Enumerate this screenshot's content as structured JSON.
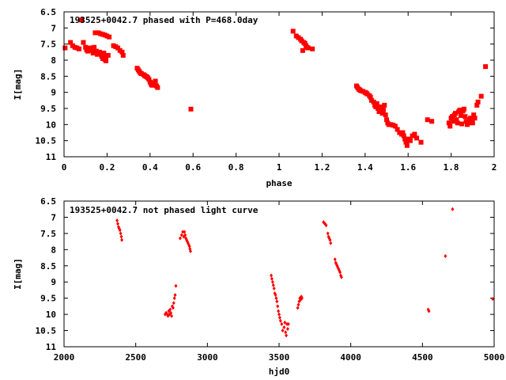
{
  "colors": {
    "points": "#ff0000",
    "axes": "#000000",
    "background": "#ffffff"
  },
  "chart_data": [
    {
      "type": "scatter",
      "title": "193525+0042.7 phased with P=468.0day",
      "xlabel": "phase",
      "ylabel": "I[mag]",
      "xlim": [
        0,
        2
      ],
      "ylim": [
        6.5,
        11
      ],
      "y_reversed": true,
      "grid": false,
      "marker": "filled-square",
      "xticks": [
        "0",
        "0.2",
        "0.4",
        "0.6",
        "0.8",
        "1",
        "1.2",
        "1.4",
        "1.6",
        "1.8",
        "2"
      ],
      "yticks": [
        "6.5",
        "7",
        "7.5",
        "8",
        "8.5",
        "9",
        "9.5",
        "10",
        "10.5",
        "11"
      ],
      "series": [
        {
          "points": [
            [
              0.005,
              7.62
            ],
            [
              0.03,
              7.45
            ],
            [
              0.04,
              7.55
            ],
            [
              0.05,
              7.6
            ],
            [
              0.06,
              7.62
            ],
            [
              0.07,
              7.65
            ],
            [
              0.08,
              6.75
            ],
            [
              0.09,
              7.45
            ],
            [
              0.1,
              7.6
            ],
            [
              0.105,
              7.68
            ],
            [
              0.11,
              7.72
            ],
            [
              0.12,
              7.62
            ],
            [
              0.125,
              7.7
            ],
            [
              0.13,
              7.65
            ],
            [
              0.135,
              7.78
            ],
            [
              0.14,
              7.6
            ],
            [
              0.145,
              7.15
            ],
            [
              0.15,
              7.72
            ],
            [
              0.155,
              7.82
            ],
            [
              0.16,
              7.15
            ],
            [
              0.165,
              7.75
            ],
            [
              0.17,
              7.18
            ],
            [
              0.175,
              7.88
            ],
            [
              0.18,
              7.2
            ],
            [
              0.185,
              7.78
            ],
            [
              0.19,
              7.22
            ],
            [
              0.195,
              7.9
            ],
            [
              0.2,
              7.25
            ],
            [
              0.205,
              7.85
            ],
            [
              0.21,
              7.28
            ],
            [
              0.18,
              7.95
            ],
            [
              0.19,
              7.98
            ],
            [
              0.195,
              8.02
            ],
            [
              0.23,
              7.55
            ],
            [
              0.24,
              7.58
            ],
            [
              0.25,
              7.62
            ],
            [
              0.26,
              7.7
            ],
            [
              0.27,
              7.75
            ],
            [
              0.275,
              7.85
            ],
            [
              0.34,
              8.25
            ],
            [
              0.345,
              8.3
            ],
            [
              0.35,
              8.35
            ],
            [
              0.355,
              8.4
            ],
            [
              0.36,
              8.42
            ],
            [
              0.37,
              8.45
            ],
            [
              0.375,
              8.48
            ],
            [
              0.38,
              8.5
            ],
            [
              0.385,
              8.52
            ],
            [
              0.39,
              8.55
            ],
            [
              0.395,
              8.6
            ],
            [
              0.4,
              8.68
            ],
            [
              0.405,
              8.75
            ],
            [
              0.41,
              8.78
            ],
            [
              0.42,
              8.7
            ],
            [
              0.425,
              8.65
            ],
            [
              0.43,
              8.8
            ],
            [
              0.435,
              8.85
            ],
            [
              0.59,
              9.52
            ],
            [
              1.065,
              7.1
            ],
            [
              1.08,
              7.25
            ],
            [
              1.09,
              7.3
            ],
            [
              1.1,
              7.35
            ],
            [
              1.105,
              7.4
            ],
            [
              1.11,
              7.7
            ],
            [
              1.115,
              7.45
            ],
            [
              1.12,
              7.48
            ],
            [
              1.125,
              7.55
            ],
            [
              1.13,
              7.6
            ],
            [
              1.135,
              7.62
            ],
            [
              1.155,
              7.65
            ],
            [
              1.36,
              8.8
            ],
            [
              1.365,
              8.85
            ],
            [
              1.37,
              8.9
            ],
            [
              1.375,
              8.92
            ],
            [
              1.38,
              8.95
            ],
            [
              1.39,
              8.97
            ],
            [
              1.4,
              9.0
            ],
            [
              1.405,
              9.02
            ],
            [
              1.41,
              9.05
            ],
            [
              1.42,
              9.1
            ],
            [
              1.425,
              9.15
            ],
            [
              1.43,
              9.25
            ],
            [
              1.44,
              9.3
            ],
            [
              1.445,
              9.4
            ],
            [
              1.45,
              9.45
            ],
            [
              1.455,
              9.35
            ],
            [
              1.46,
              9.5
            ],
            [
              1.465,
              9.6
            ],
            [
              1.47,
              9.55
            ],
            [
              1.475,
              9.45
            ],
            [
              1.48,
              9.65
            ],
            [
              1.485,
              9.55
            ],
            [
              1.49,
              9.4
            ],
            [
              1.495,
              9.7
            ],
            [
              1.5,
              9.85
            ],
            [
              1.505,
              9.95
            ],
            [
              1.51,
              10.0
            ],
            [
              1.52,
              10.0
            ],
            [
              1.53,
              10.02
            ],
            [
              1.54,
              10.05
            ],
            [
              1.55,
              10.15
            ],
            [
              1.56,
              10.25
            ],
            [
              1.57,
              10.3
            ],
            [
              1.575,
              10.25
            ],
            [
              1.58,
              10.35
            ],
            [
              1.585,
              10.45
            ],
            [
              1.59,
              10.55
            ],
            [
              1.595,
              10.65
            ],
            [
              1.6,
              10.45
            ],
            [
              1.61,
              10.5
            ],
            [
              1.62,
              10.35
            ],
            [
              1.63,
              10.3
            ],
            [
              1.64,
              10.42
            ],
            [
              1.66,
              10.55
            ],
            [
              1.69,
              9.85
            ],
            [
              1.71,
              9.9
            ],
            [
              1.79,
              9.95
            ],
            [
              1.795,
              10.05
            ],
            [
              1.8,
              9.8
            ],
            [
              1.805,
              9.75
            ],
            [
              1.81,
              9.9
            ],
            [
              1.815,
              9.7
            ],
            [
              1.82,
              9.65
            ],
            [
              1.825,
              9.85
            ],
            [
              1.83,
              9.95
            ],
            [
              1.835,
              9.6
            ],
            [
              1.84,
              9.55
            ],
            [
              1.845,
              9.72
            ],
            [
              1.85,
              9.98
            ],
            [
              1.855,
              9.58
            ],
            [
              1.86,
              9.52
            ],
            [
              1.865,
              9.75
            ],
            [
              1.87,
              9.9
            ],
            [
              1.875,
              10.0
            ],
            [
              1.88,
              9.95
            ],
            [
              1.885,
              9.85
            ],
            [
              1.89,
              9.8
            ],
            [
              1.895,
              9.88
            ],
            [
              1.9,
              9.95
            ],
            [
              1.905,
              9.7
            ],
            [
              1.91,
              9.8
            ],
            [
              1.92,
              9.4
            ],
            [
              1.925,
              9.3
            ],
            [
              1.94,
              9.12
            ],
            [
              1.96,
              8.2
            ]
          ]
        }
      ]
    },
    {
      "type": "scatter",
      "title": "193525+0042.7 not phased light curve",
      "xlabel": "hjd0",
      "ylabel": "I[mag]",
      "xlim": [
        2000,
        5000
      ],
      "ylim": [
        6.5,
        11
      ],
      "y_reversed": true,
      "grid": false,
      "marker": "filled-diamond",
      "xticks": [
        "2000",
        "2500",
        "3000",
        "3500",
        "4000",
        "4500",
        "5000"
      ],
      "yticks": [
        "6.5",
        "7",
        "7.5",
        "8",
        "8.5",
        "9",
        "9.5",
        "10",
        "10.5",
        "11"
      ],
      "series": [
        {
          "points": [
            [
              2370,
              7.1
            ],
            [
              2375,
              7.2
            ],
            [
              2380,
              7.3
            ],
            [
              2385,
              7.35
            ],
            [
              2390,
              7.4
            ],
            [
              2395,
              7.5
            ],
            [
              2400,
              7.6
            ],
            [
              2403,
              7.7
            ],
            [
              2705,
              10.0
            ],
            [
              2712,
              9.95
            ],
            [
              2720,
              10.0
            ],
            [
              2725,
              10.05
            ],
            [
              2730,
              9.9
            ],
            [
              2735,
              10.0
            ],
            [
              2740,
              9.85
            ],
            [
              2745,
              9.95
            ],
            [
              2750,
              10.05
            ],
            [
              2755,
              9.75
            ],
            [
              2760,
              9.8
            ],
            [
              2765,
              9.65
            ],
            [
              2770,
              9.5
            ],
            [
              2775,
              9.4
            ],
            [
              2780,
              9.12
            ],
            [
              2810,
              7.65
            ],
            [
              2820,
              7.55
            ],
            [
              2828,
              7.45
            ],
            [
              2835,
              7.6
            ],
            [
              2840,
              7.45
            ],
            [
              2845,
              7.55
            ],
            [
              2850,
              7.65
            ],
            [
              2855,
              7.7
            ],
            [
              2860,
              7.75
            ],
            [
              2865,
              7.8
            ],
            [
              2870,
              7.85
            ],
            [
              2875,
              7.9
            ],
            [
              2878,
              7.98
            ],
            [
              2882,
              8.05
            ],
            [
              3445,
              8.8
            ],
            [
              3450,
              8.9
            ],
            [
              3455,
              9.0
            ],
            [
              3460,
              9.1
            ],
            [
              3465,
              9.2
            ],
            [
              3470,
              9.35
            ],
            [
              3475,
              9.4
            ],
            [
              3480,
              9.5
            ],
            [
              3485,
              9.6
            ],
            [
              3490,
              9.75
            ],
            [
              3495,
              9.9
            ],
            [
              3500,
              10.0
            ],
            [
              3505,
              10.1
            ],
            [
              3510,
              10.2
            ],
            [
              3518,
              10.3
            ],
            [
              3525,
              10.5
            ],
            [
              3535,
              10.4
            ],
            [
              3540,
              10.25
            ],
            [
              3545,
              10.55
            ],
            [
              3550,
              10.65
            ],
            [
              3555,
              10.3
            ],
            [
              3560,
              10.45
            ],
            [
              3565,
              10.3
            ],
            [
              3630,
              9.8
            ],
            [
              3635,
              9.7
            ],
            [
              3640,
              9.6
            ],
            [
              3645,
              9.5
            ],
            [
              3650,
              9.55
            ],
            [
              3655,
              9.45
            ],
            [
              3660,
              9.5
            ],
            [
              3810,
              7.15
            ],
            [
              3815,
              7.18
            ],
            [
              3820,
              7.2
            ],
            [
              3828,
              7.25
            ],
            [
              3840,
              7.5
            ],
            [
              3845,
              7.6
            ],
            [
              3850,
              7.65
            ],
            [
              3855,
              7.7
            ],
            [
              3860,
              7.8
            ],
            [
              3890,
              8.3
            ],
            [
              3895,
              8.4
            ],
            [
              3900,
              8.45
            ],
            [
              3905,
              8.5
            ],
            [
              3910,
              8.55
            ],
            [
              3915,
              8.6
            ],
            [
              3920,
              8.65
            ],
            [
              3925,
              8.7
            ],
            [
              3930,
              8.8
            ],
            [
              3935,
              8.85
            ],
            [
              4540,
              9.85
            ],
            [
              4545,
              9.9
            ],
            [
              4660,
              8.2
            ],
            [
              4710,
              6.75
            ],
            [
              4990,
              9.52
            ]
          ]
        }
      ]
    }
  ]
}
